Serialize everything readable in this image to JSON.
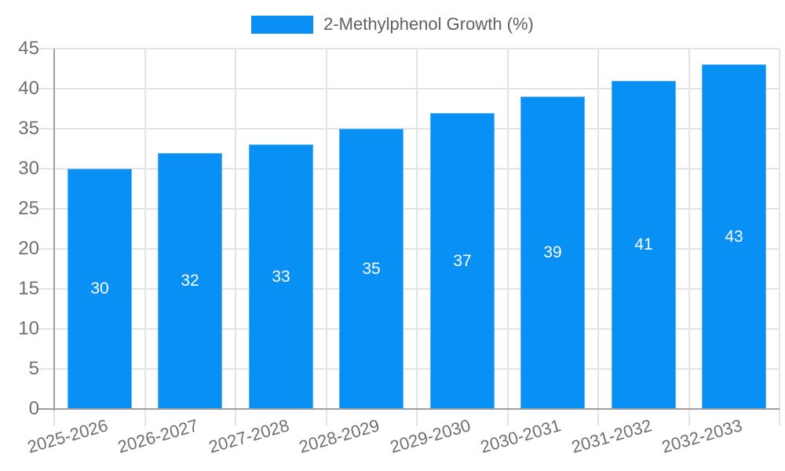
{
  "chart_data": {
    "type": "bar",
    "title": "2-Methylphenol Growth (%)",
    "legend": {
      "position": "top",
      "label": "2-Methylphenol Growth (%)"
    },
    "categories": [
      "2025-2026",
      "2026-2027",
      "2027-2028",
      "2028-2029",
      "2029-2030",
      "2030-2031",
      "2031-2032",
      "2032-2033"
    ],
    "values": [
      30,
      32,
      33,
      35,
      37,
      39,
      41,
      43
    ],
    "value_labels_shown": true,
    "xlabel": "",
    "ylabel": "",
    "ylim": [
      0,
      45
    ],
    "yticks": [
      0,
      5,
      10,
      15,
      20,
      25,
      30,
      35,
      40,
      45
    ],
    "grid": true,
    "x_label_rotation_deg": -16,
    "colors": {
      "bar": "#0990f5",
      "bar_border": "#56b3f8",
      "value_label": "#ffffff",
      "tick_text": "#707070",
      "legend_text": "#5f6164",
      "grid_line": "#e4e4e4",
      "axis_line": "#9e9e9e"
    }
  }
}
